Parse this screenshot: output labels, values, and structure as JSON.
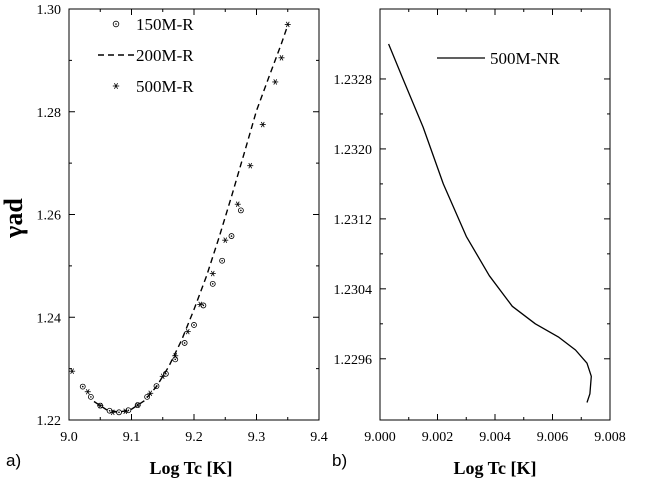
{
  "chart_data": [
    {
      "type": "scatter",
      "panel_label": "a)",
      "xlabel": "Log Tc [K]",
      "ylabel": "γad",
      "xlim": [
        9.0,
        9.4
      ],
      "ylim": [
        1.22,
        1.3
      ],
      "xticks": [
        "9.0",
        "9.1",
        "9.2",
        "9.3",
        "9.4"
      ],
      "yticks": [
        "1.22",
        "1.24",
        "1.26",
        "1.28",
        "1.30"
      ],
      "legend_position": "top-left",
      "series": [
        {
          "name": "150M-R",
          "marker": "circle-dot",
          "x": [
            9.022,
            9.035,
            9.05,
            9.065,
            9.08,
            9.095,
            9.11,
            9.125,
            9.14,
            9.155,
            9.17,
            9.185,
            9.2,
            9.215,
            9.23,
            9.245,
            9.26,
            9.275
          ],
          "y": [
            1.2265,
            1.2245,
            1.2228,
            1.2218,
            1.2215,
            1.2219,
            1.2229,
            1.2245,
            1.2266,
            1.229,
            1.2318,
            1.235,
            1.2385,
            1.2423,
            1.2465,
            1.251,
            1.2558,
            1.2608
          ]
        },
        {
          "name": "200M-R",
          "marker": "dashed-line",
          "x": [
            9.04,
            9.06,
            9.08,
            9.1,
            9.12,
            9.14,
            9.16,
            9.18,
            9.2,
            9.22,
            9.24,
            9.26,
            9.28,
            9.3,
            9.32,
            9.34,
            9.35
          ],
          "y": [
            1.2236,
            1.222,
            1.2215,
            1.2221,
            1.2237,
            1.2265,
            1.2305,
            1.2355,
            1.2415,
            1.248,
            1.2555,
            1.2635,
            1.2718,
            1.2802,
            1.2868,
            1.2933,
            1.2968
          ]
        },
        {
          "name": "500M-R",
          "marker": "asterisk",
          "x": [
            9.005,
            9.03,
            9.05,
            9.07,
            9.09,
            9.11,
            9.13,
            9.15,
            9.17,
            9.19,
            9.21,
            9.23,
            9.25,
            9.27,
            9.29,
            9.31,
            9.33,
            9.34,
            9.35
          ],
          "y": [
            1.2295,
            1.2255,
            1.2228,
            1.2215,
            1.2217,
            1.2229,
            1.2252,
            1.2285,
            1.2325,
            1.2372,
            1.2425,
            1.2485,
            1.255,
            1.262,
            1.2695,
            1.2775,
            1.2858,
            1.2905,
            1.297
          ]
        }
      ]
    },
    {
      "type": "line",
      "panel_label": "b)",
      "xlabel": "Log Tc [K]",
      "xlim": [
        9.0,
        9.008
      ],
      "ylim": [
        1.2289,
        1.2336
      ],
      "xticks": [
        "9.000",
        "9.002",
        "9.004",
        "9.006",
        "9.008"
      ],
      "yticks": [
        "1.2296",
        "1.2304",
        "1.2312",
        "1.2320",
        "1.2328"
      ],
      "legend_position": "top-right",
      "series": [
        {
          "name": "500M-NR",
          "x": [
            9.0003,
            9.0008,
            9.0015,
            9.0022,
            9.003,
            9.0038,
            9.0046,
            9.0054,
            9.0062,
            9.0068,
            9.0072,
            9.00735,
            9.0073,
            9.0072
          ],
          "y": [
            1.2332,
            1.2328,
            1.23225,
            1.2316,
            1.231,
            1.23055,
            1.2302,
            1.23,
            1.22985,
            1.2297,
            1.22955,
            1.2294,
            1.2292,
            1.2291
          ]
        }
      ]
    }
  ]
}
